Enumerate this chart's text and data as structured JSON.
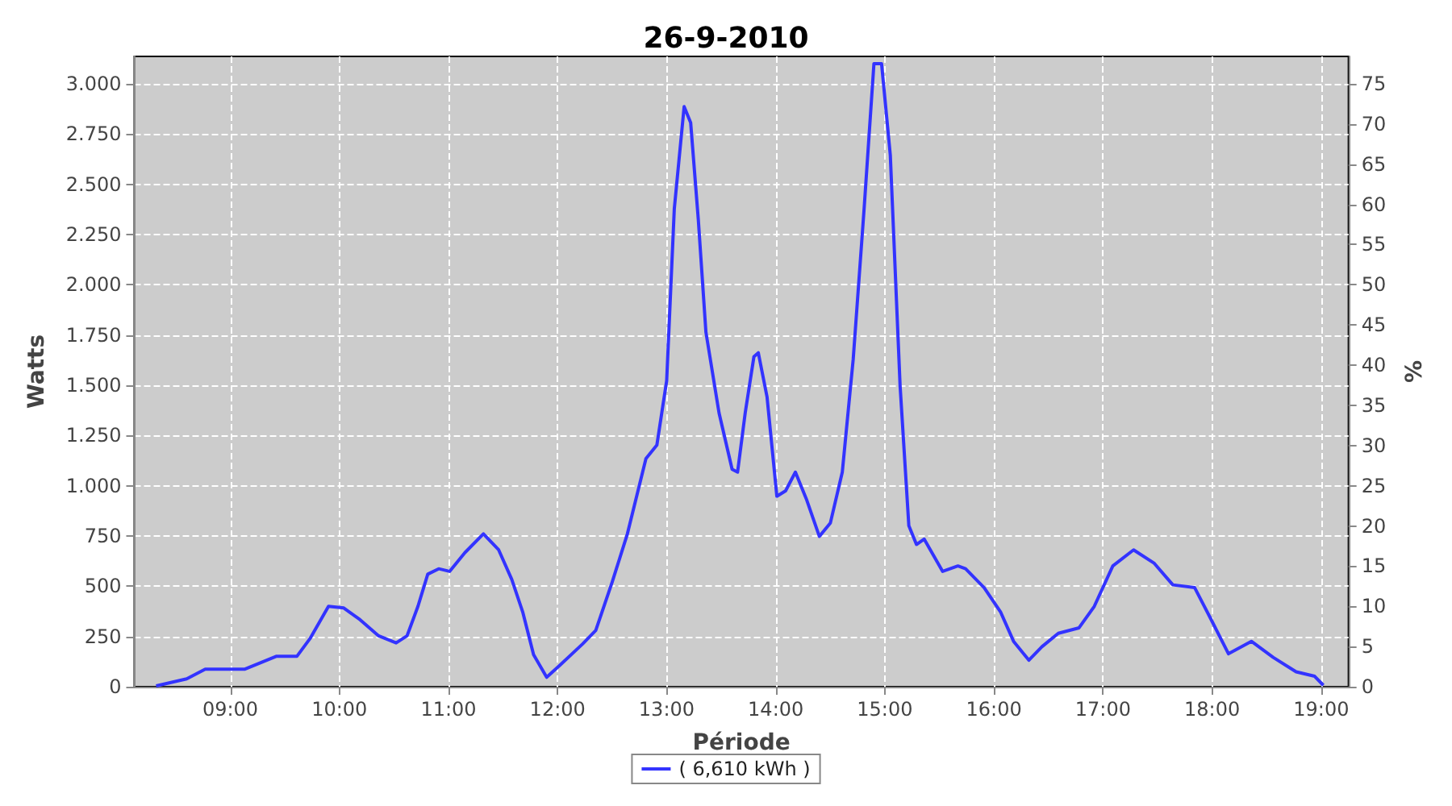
{
  "chart_data": {
    "type": "line",
    "title": "26-9-2010",
    "xlabel": "Période",
    "ylabel": "Watts",
    "y2label": "%",
    "xlim": [
      8.12,
      19.25
    ],
    "xticks": [
      {
        "value": 9,
        "label": "09:00"
      },
      {
        "value": 10,
        "label": "10:00"
      },
      {
        "value": 11,
        "label": "11:00"
      },
      {
        "value": 12,
        "label": "12:00"
      },
      {
        "value": 13,
        "label": "13:00"
      },
      {
        "value": 14,
        "label": "14:00"
      },
      {
        "value": 15,
        "label": "15:00"
      },
      {
        "value": 16,
        "label": "16:00"
      },
      {
        "value": 17,
        "label": "17:00"
      },
      {
        "value": 18,
        "label": "18:00"
      },
      {
        "value": 19,
        "label": "19:00"
      }
    ],
    "ylim": [
      0,
      3137
    ],
    "yticks": [
      0,
      250,
      500,
      750,
      {
        "value": 1000,
        "label": "1.000"
      },
      {
        "value": 1250,
        "label": "1.250"
      },
      {
        "value": 1500,
        "label": "1.500"
      },
      {
        "value": 1750,
        "label": "1.750"
      },
      {
        "value": 2000,
        "label": "2.000"
      },
      {
        "value": 2250,
        "label": "2.250"
      },
      {
        "value": 2500,
        "label": "2.500"
      },
      {
        "value": 2750,
        "label": "2.750"
      },
      {
        "value": 3000,
        "label": "3.000"
      }
    ],
    "y2lim": [
      0,
      78.4
    ],
    "y2ticks": [
      0,
      5,
      10,
      15,
      20,
      25,
      30,
      35,
      40,
      45,
      50,
      55,
      60,
      65,
      70,
      75
    ],
    "grid": true,
    "legend": "bottom",
    "marker": "none",
    "line_style": "solid",
    "x": [
      8.32,
      8.6,
      8.77,
      9.13,
      9.42,
      9.61,
      9.73,
      9.9,
      10.04,
      10.19,
      10.36,
      10.52,
      10.62,
      10.72,
      10.81,
      10.91,
      11.01,
      11.15,
      11.32,
      11.46,
      11.58,
      11.68,
      11.78,
      11.9,
      12.02,
      12.23,
      12.35,
      12.5,
      12.64,
      12.81,
      12.91,
      13.0,
      13.07,
      13.16,
      13.22,
      13.29,
      13.36,
      13.48,
      13.6,
      13.65,
      13.72,
      13.8,
      13.84,
      13.92,
      14.01,
      14.09,
      14.18,
      14.28,
      14.4,
      14.5,
      14.61,
      14.71,
      14.81,
      14.9,
      14.97,
      15.05,
      15.14,
      15.22,
      15.29,
      15.36,
      15.53,
      15.67,
      15.74,
      15.91,
      16.06,
      16.18,
      16.32,
      16.44,
      16.59,
      16.78,
      16.92,
      17.09,
      17.28,
      17.47,
      17.64,
      17.84,
      17.98,
      18.15,
      18.36,
      18.56,
      18.77,
      18.94,
      19.02
    ],
    "series": [
      {
        "name": "( 6,610 kWh )",
        "color": "#3333ff",
        "values": [
          4,
          39,
          87,
          87,
          151,
          151,
          239,
          400,
          392,
          333,
          253,
          218,
          253,
          400,
          560,
          587,
          574,
          667,
          761,
          681,
          534,
          373,
          159,
          47,
          106,
          213,
          280,
          520,
          761,
          1135,
          1202,
          1523,
          2379,
          2887,
          2807,
          2325,
          1764,
          1363,
          1082,
          1068,
          1363,
          1643,
          1662,
          1443,
          948,
          975,
          1068,
          935,
          748,
          814,
          1068,
          1630,
          2379,
          3101,
          3101,
          2646,
          1496,
          801,
          708,
          735,
          574,
          601,
          587,
          493,
          373,
          226,
          132,
          199,
          266,
          293,
          400,
          601,
          681,
          614,
          507,
          493,
          346,
          164,
          226,
          146,
          74,
          52,
          7
        ]
      }
    ]
  }
}
